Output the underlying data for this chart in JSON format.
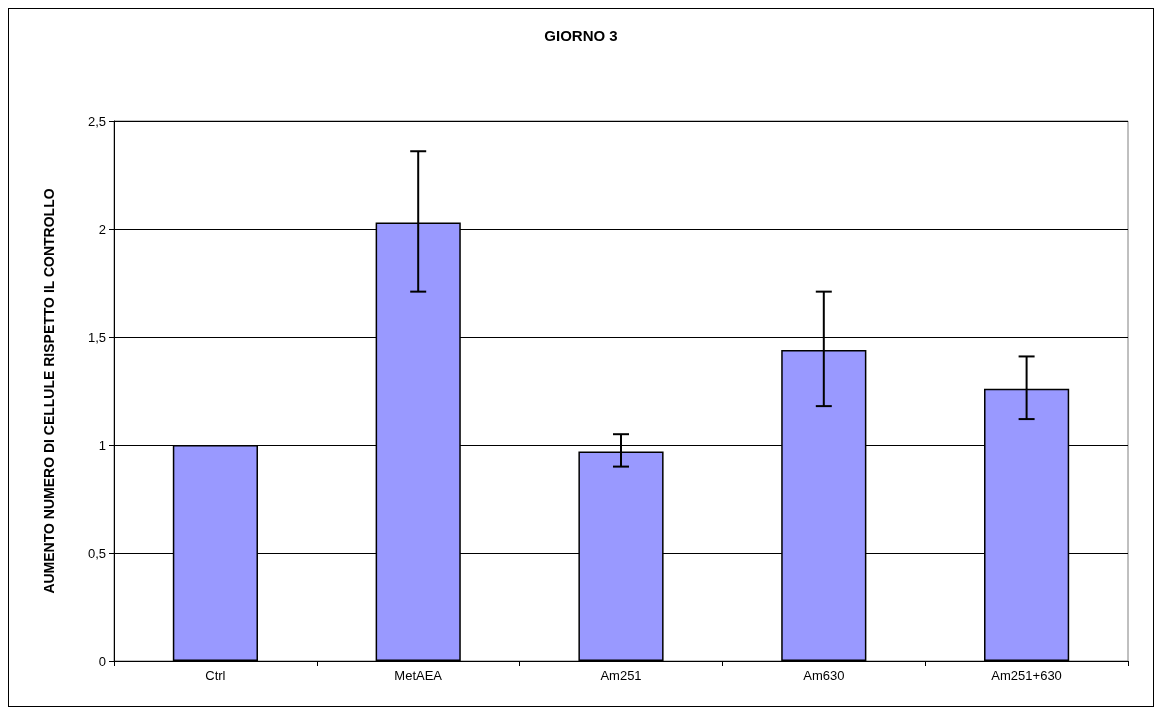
{
  "chart_data": {
    "type": "bar",
    "title": "GIORNO 3",
    "ylabel": "AUMENTO NUMERO DI CELLULE RISPETTO IL CONTROLLO",
    "categories": [
      "Ctrl",
      "MetAEA",
      "Am251",
      "Am630",
      "Am251+630"
    ],
    "values": [
      1.0,
      2.03,
      0.97,
      1.44,
      1.26
    ],
    "errors": [
      null,
      [
        1.71,
        2.36
      ],
      [
        0.9,
        1.05
      ],
      [
        1.18,
        1.71
      ],
      [
        1.12,
        1.41
      ]
    ],
    "color": "#9999ff",
    "ylim": [
      0,
      2.5
    ],
    "yticks": [
      0,
      {
        "value": 0.5,
        "label": "0,5"
      },
      1,
      {
        "value": 1.5,
        "label": "1,5"
      },
      2,
      {
        "value": 2.5,
        "label": "2,5"
      }
    ],
    "grid": "y"
  }
}
